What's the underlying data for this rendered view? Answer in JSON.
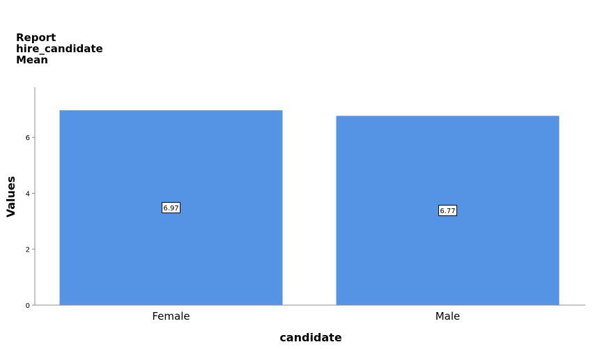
{
  "title_lines": [
    "Report",
    "hire_candidate",
    "Mean"
  ],
  "chart_data": {
    "type": "bar",
    "title": "Report hire_candidate Mean",
    "xlabel": "candidate",
    "ylabel": "Values",
    "categories": [
      "Female",
      "Male"
    ],
    "values": [
      6.97,
      6.77
    ],
    "data_labels": [
      "6.97",
      "6.77"
    ],
    "ylim": [
      0,
      7.8
    ],
    "yticks": [
      0,
      2,
      4,
      6
    ],
    "ytick_labels": [
      "0",
      "2",
      "4",
      "6"
    ],
    "bar_color": "#5594e4",
    "grid": false,
    "legend": "none"
  }
}
